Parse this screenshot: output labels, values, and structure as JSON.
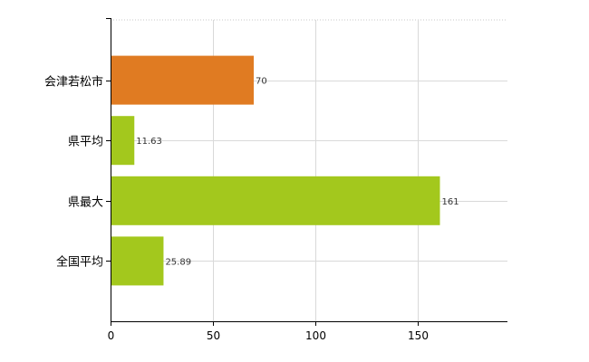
{
  "chart_data": {
    "type": "bar",
    "orientation": "horizontal",
    "categories": [
      "会津若松市",
      "県平均",
      "県最大",
      "全国平均"
    ],
    "values": [
      70,
      11.63,
      161,
      25.89
    ],
    "value_labels": [
      "70",
      "11.63",
      "161",
      "25.89"
    ],
    "bar_colors": [
      "#e07b22",
      "#a3c81d",
      "#a3c81d",
      "#a3c81d"
    ],
    "xlim": [
      0,
      194
    ],
    "xticks": [
      0,
      50,
      100,
      150
    ],
    "xtick_labels": [
      "0",
      "50",
      "100",
      "150"
    ],
    "grid": true,
    "legend": "none"
  }
}
